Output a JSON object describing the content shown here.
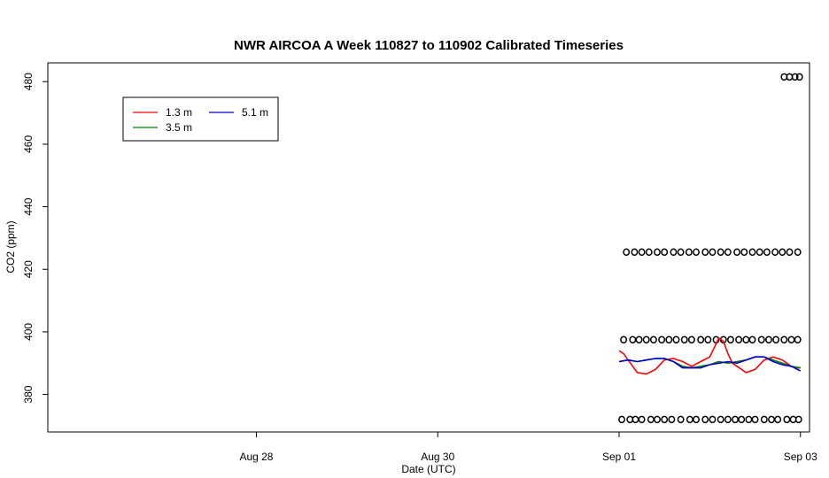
{
  "chart_data": {
    "type": "line",
    "title": "NWR AIRCOA A  Week 110827 to 110902  Calibrated Timeseries",
    "xlabel": "Date (UTC)",
    "ylabel": "CO2 (ppm)",
    "xlim": [
      -1.3,
      7.1
    ],
    "ylim": [
      368,
      486
    ],
    "x_units": "days since Aug 27",
    "xticks": [
      {
        "value": 1,
        "label": "Aug 28"
      },
      {
        "value": 3,
        "label": "Aug 30"
      },
      {
        "value": 5,
        "label": "Sep 01"
      },
      {
        "value": 7,
        "label": "Sep 03"
      }
    ],
    "yticks": [
      380,
      400,
      420,
      440,
      460,
      480
    ],
    "legend": {
      "placement": "top-left",
      "entries": [
        {
          "name": "1.3 m",
          "color": "#ff0000"
        },
        {
          "name": "3.5 m",
          "color": "#008000"
        },
        {
          "name": "5.1 m",
          "color": "#0000cd"
        }
      ]
    },
    "series": [
      {
        "name": "1.3 m",
        "color": "#ff0000",
        "x": [
          5.0,
          5.05,
          5.1,
          5.2,
          5.3,
          5.4,
          5.5,
          5.6,
          5.7,
          5.8,
          5.9,
          6.0,
          6.1,
          6.15,
          6.2,
          6.25,
          6.3,
          6.4,
          6.5,
          6.6,
          6.7,
          6.8,
          6.85,
          6.9,
          6.95,
          7.0
        ],
        "y": [
          394,
          393,
          391,
          387,
          386.5,
          388,
          391,
          391.5,
          390.5,
          389,
          390.5,
          392,
          398,
          397,
          393,
          390,
          389,
          387,
          388,
          391,
          392,
          391,
          390,
          389,
          388.5,
          388.5
        ]
      },
      {
        "name": "3.5 m",
        "color": "#008000",
        "x": [
          5.0,
          5.1,
          5.2,
          5.3,
          5.4,
          5.5,
          5.6,
          5.7,
          5.8,
          5.9,
          6.0,
          6.1,
          6.2,
          6.3,
          6.4,
          6.5,
          6.6,
          6.7,
          6.8,
          6.9,
          7.0
        ],
        "y": [
          390.5,
          391,
          390.5,
          391,
          391.5,
          391.5,
          390.5,
          389,
          388.5,
          389,
          389.5,
          390.5,
          390,
          390.5,
          391,
          392,
          392,
          391,
          390,
          389,
          388.5
        ]
      },
      {
        "name": "5.1 m",
        "color": "#0000cd",
        "x": [
          5.0,
          5.1,
          5.2,
          5.3,
          5.4,
          5.5,
          5.6,
          5.7,
          5.8,
          5.9,
          6.0,
          6.1,
          6.2,
          6.3,
          6.4,
          6.5,
          6.6,
          6.7,
          6.8,
          6.9,
          7.0
        ],
        "y": [
          390.5,
          391,
          390.5,
          391,
          391.5,
          391.5,
          390.5,
          388.5,
          388.5,
          388.5,
          389.5,
          390,
          390.5,
          390,
          391,
          392,
          392,
          390.5,
          389.5,
          389,
          387.5
        ]
      }
    ],
    "calibration_points": {
      "marker": "open-circle",
      "levels": [
        {
          "y": 372,
          "x": [
            5.03,
            5.12,
            5.18,
            5.25,
            5.35,
            5.42,
            5.5,
            5.58,
            5.68,
            5.78,
            5.85,
            5.95,
            6.03,
            6.12,
            6.2,
            6.28,
            6.35,
            6.43,
            6.5,
            6.6,
            6.68,
            6.75,
            6.85,
            6.92,
            6.98
          ]
        },
        {
          "y": 397.5,
          "x": [
            5.05,
            5.15,
            5.22,
            5.3,
            5.38,
            5.47,
            5.55,
            5.63,
            5.72,
            5.8,
            5.9,
            5.98,
            6.07,
            6.15,
            6.23,
            6.32,
            6.4,
            6.47,
            6.57,
            6.65,
            6.73,
            6.82,
            6.9,
            6.97
          ]
        },
        {
          "y": 425.5,
          "x": [
            5.08,
            5.17,
            5.25,
            5.33,
            5.42,
            5.5,
            5.6,
            5.68,
            5.77,
            5.85,
            5.95,
            6.03,
            6.12,
            6.2,
            6.3,
            6.38,
            6.47,
            6.55,
            6.63,
            6.72,
            6.8,
            6.88,
            6.97
          ]
        },
        {
          "y": 481.5,
          "x": [
            6.82,
            6.88,
            6.94,
            6.99
          ]
        }
      ]
    }
  }
}
